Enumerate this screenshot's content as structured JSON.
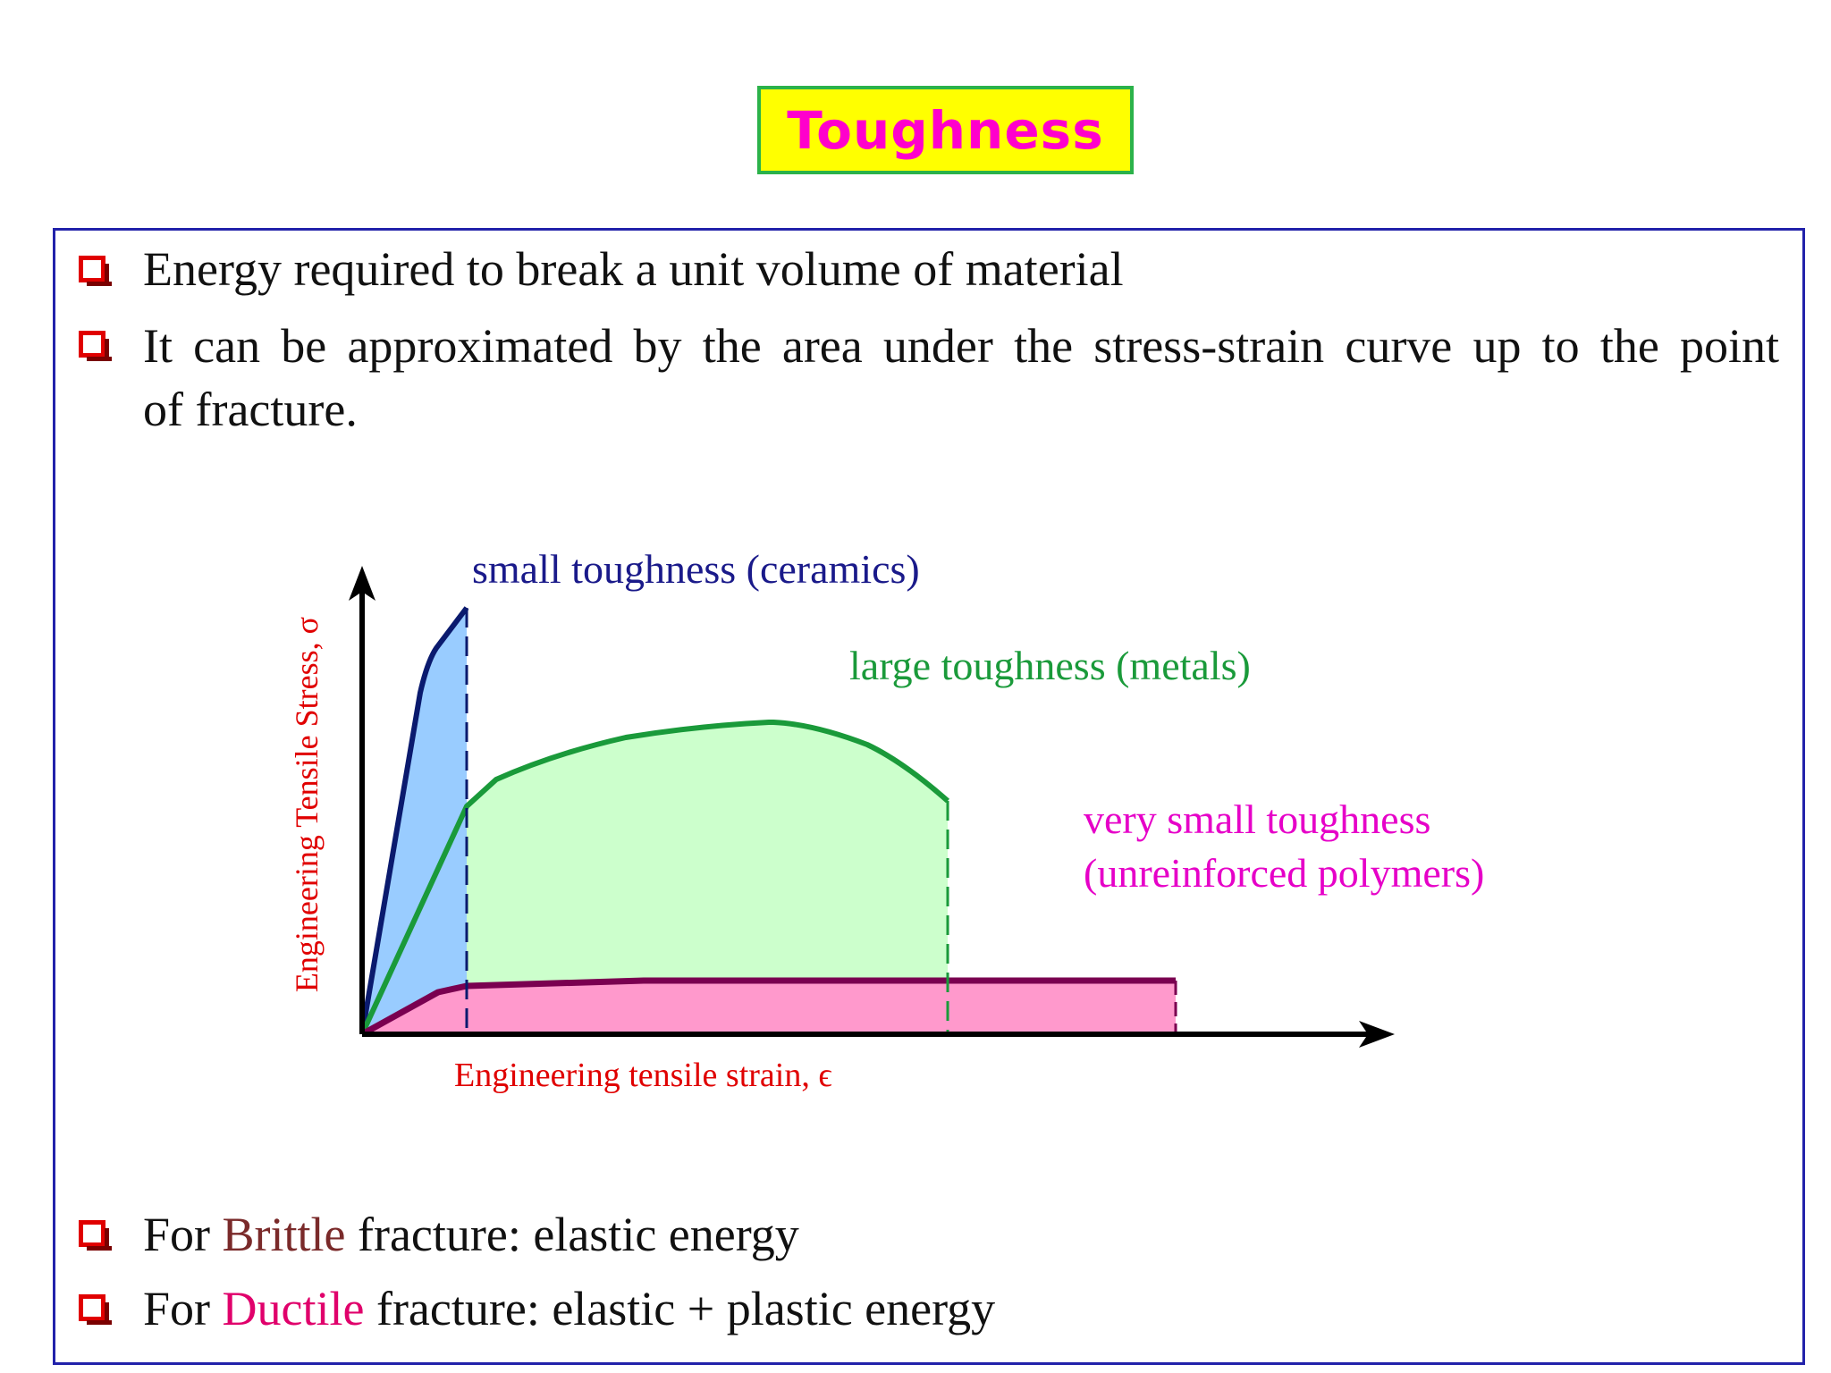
{
  "title": "Toughness",
  "bullets_top": [
    "Energy required to break a unit volume of material",
    "It can be approximated by the area under the stress-strain curve up to the point",
    "of fracture."
  ],
  "diagram": {
    "y_axis_label": "Engineering Tensile Stress, σ",
    "x_axis_label": "Engineering tensile strain, ϵ",
    "labels": {
      "ceramics": "small toughness (ceramics)",
      "metals": "large toughness (metals)",
      "polymers_line1": "very small toughness",
      "polymers_line2": "(unreinforced polymers)"
    },
    "colors": {
      "ceramics_fill": "#99ccff",
      "ceramics_line": "#0a1a6e",
      "metals_fill": "#ccffcc",
      "metals_line": "#1a9a3a",
      "polymers_fill": "#ff99cc",
      "polymers_line": "#7a0050",
      "axis_label": "#e00000"
    }
  },
  "bullets_bottom": {
    "brittle": {
      "prefix": "For ",
      "highlight": "Brittle",
      "suffix": " fracture: elastic energy"
    },
    "ductile": {
      "prefix": "For ",
      "highlight": "Ductile",
      "suffix": " fracture: elastic + plastic energy"
    }
  }
}
